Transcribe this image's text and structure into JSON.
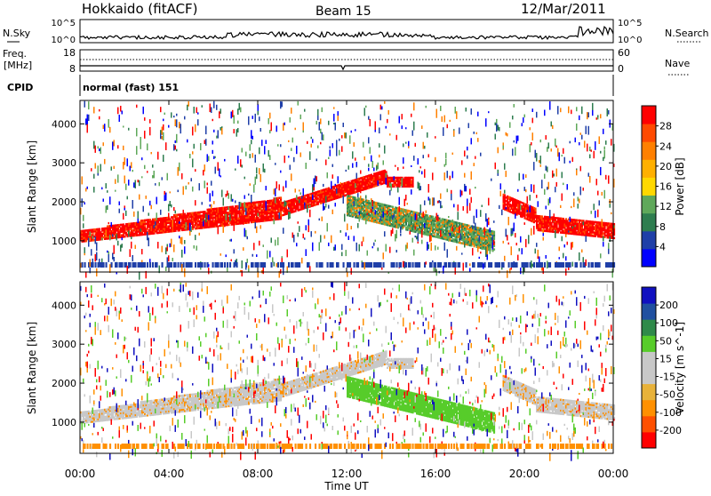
{
  "header": {
    "station": "Hokkaido (fitACF)",
    "beam": "Beam 15",
    "date": "12/Mar/2011"
  },
  "noise_panel": {
    "left_label": "N.Sky",
    "right_label": "N.Search",
    "ticks": [
      "10^5",
      "10^0"
    ]
  },
  "freq_panel": {
    "left_label_1": "Freq.",
    "left_label_2": "[MHz]",
    "right_label": "Nave",
    "left_ticks": [
      "18",
      "8"
    ],
    "right_ticks": [
      "60",
      "0"
    ]
  },
  "cpid_panel": {
    "label": "CPID",
    "mode": "normal (fast) 151"
  },
  "colors": {
    "power": [
      "#0000ff",
      "#1f3fa8",
      "#2e7d4f",
      "#5fa85a",
      "#ffd800",
      "#ffb000",
      "#ff8000",
      "#ff4a00",
      "#ff0000"
    ],
    "velocity": [
      "#ff0000",
      "#ff5000",
      "#ff9000",
      "#e8b23a",
      "#c8c8c8",
      "#c8c8c8",
      "#57cc2a",
      "#2f8a4a",
      "#2050a0",
      "#1010c0"
    ]
  },
  "chart_data": [
    {
      "type": "heatmap",
      "name": "power",
      "ylabel": "Slant Range [km]",
      "yticks": [
        "4000",
        "3000",
        "2000",
        "1000"
      ],
      "ylim": [
        200,
        4600
      ],
      "colorbar_label": "Power [dB]",
      "colorbar_ticks": [
        "28",
        "24",
        "20",
        "16",
        "12",
        "8",
        "4"
      ],
      "colorbar_range": [
        0,
        32
      ]
    },
    {
      "type": "heatmap",
      "name": "velocity",
      "ylabel": "Slant Range [km]",
      "yticks": [
        "4000",
        "3000",
        "2000",
        "1000"
      ],
      "ylim": [
        200,
        4600
      ],
      "colorbar_label": "Velocity [m s^-1]",
      "colorbar_ticks": [
        "200",
        "100",
        "50",
        "15",
        "-15",
        "-50",
        "-100",
        "-200"
      ]
    }
  ],
  "xaxis": {
    "label": "Time UT",
    "ticks": [
      "00:00",
      "04:00",
      "08:00",
      "12:00",
      "16:00",
      "20:00",
      "00:00"
    ]
  }
}
